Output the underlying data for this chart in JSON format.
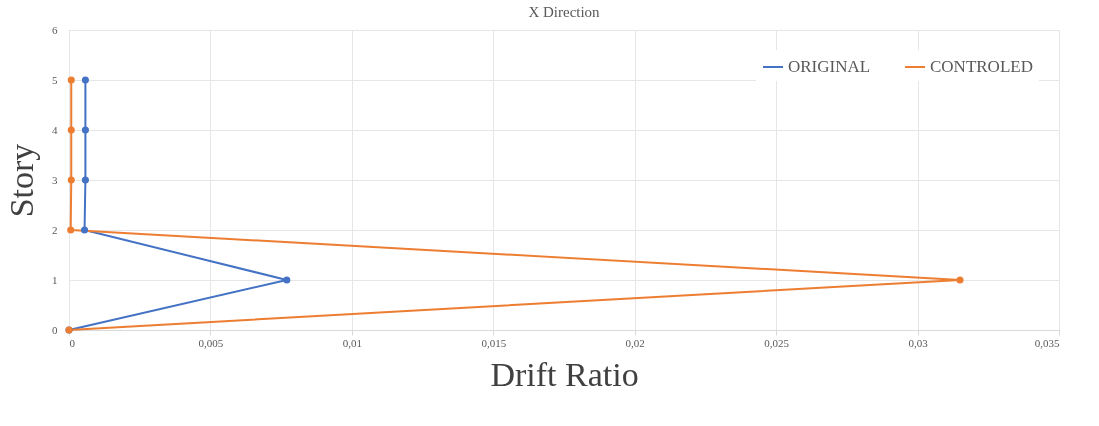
{
  "chart_data": {
    "type": "line",
    "title": "X Direction",
    "xlabel": "Drift Ratio",
    "ylabel": "Story",
    "series": [
      {
        "name": "ORIGINAL",
        "color": "#4472c4",
        "x": [
          0,
          0.0077,
          0.00055,
          0.00058,
          0.00058,
          0.00058
        ],
        "values": [
          0,
          1,
          2,
          3,
          4,
          5
        ]
      },
      {
        "name": "CONTROLED",
        "color": "#ed7d31",
        "x": [
          0,
          0.0315,
          6e-05,
          8e-05,
          8e-05,
          8e-05
        ],
        "values": [
          0,
          1,
          2,
          3,
          4,
          5
        ]
      }
    ],
    "xlim": [
      0,
      0.035
    ],
    "xticks": [
      0,
      {
        "value": 0.005,
        "label": "0,005"
      },
      {
        "value": 0.01,
        "label": "0,01"
      },
      {
        "value": 0.015,
        "label": "0,015"
      },
      {
        "value": 0.02,
        "label": "0,02"
      },
      {
        "value": 0.025,
        "label": "0,025"
      },
      {
        "value": 0.03,
        "label": "0,03"
      },
      {
        "value": 0.035,
        "label": "0,035"
      }
    ],
    "ylim": [
      0,
      6
    ],
    "yticks": [
      0,
      1,
      2,
      3,
      4,
      5,
      6
    ],
    "grid": true,
    "legend": "top right",
    "marker": "circle",
    "line_style": "solid"
  }
}
